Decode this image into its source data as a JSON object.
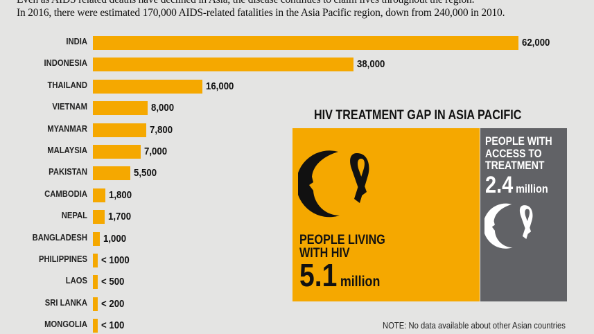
{
  "intro": {
    "line1": "Even as AIDS related deaths have declined in Asia, the disease continues to claim lives throughout the region.",
    "line2": "In 2016, there were estimated 170,000 AIDS-related fatalities in the Asia Pacific region, down from 240,000 in 2010."
  },
  "chart_data": {
    "type": "bar",
    "orientation": "horizontal",
    "categories": [
      "INDIA",
      "INDONESIA",
      "THAILAND",
      "VIETNAM",
      "MYANMAR",
      "MALAYSIA",
      "PAKISTAN",
      "CAMBODIA",
      "NEPAL",
      "BANGLADESH",
      "PHILIPPINES",
      "LAOS",
      "SRI LANKA",
      "MONGOLIA"
    ],
    "values": [
      62000,
      38000,
      16000,
      8000,
      7800,
      7000,
      5500,
      1800,
      1700,
      1000,
      null,
      null,
      null,
      null
    ],
    "data_labels": [
      "62,000",
      "38,000",
      "16,000",
      "8,000",
      "7,800",
      "7,000",
      "5,500",
      "1,800",
      "1,700",
      "1,000",
      "< 1000",
      "< 500",
      "< 200",
      "< 100"
    ],
    "bar_color": "#f5a800"
  },
  "gap": {
    "title": "HIV TREATMENT GAP IN ASIA PACIFIC",
    "living": {
      "line1": "PEOPLE LIVING",
      "line2": "WITH HIV",
      "number": "5.1",
      "unit": "million",
      "color": "#f5a800"
    },
    "treated": {
      "line1": "PEOPLE WITH",
      "line2": "ACCESS TO",
      "line3": "TREATMENT",
      "number": "2.4",
      "unit": "million",
      "color": "#616266"
    },
    "icons": [
      "face-crescent-ribbon-icon"
    ]
  },
  "note": "NOTE: No data available about other Asian countries"
}
